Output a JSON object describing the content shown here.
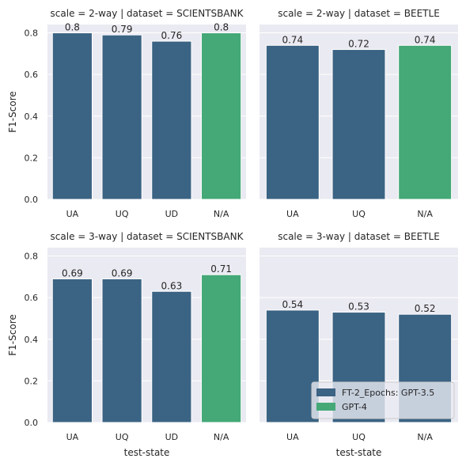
{
  "chart_data": {
    "type": "bar",
    "ylabel": "F1-Score",
    "xlabel": "test-state",
    "ylim": [
      0,
      0.84
    ],
    "yticks": [
      "0.0",
      "0.2",
      "0.4",
      "0.6",
      "0.8"
    ],
    "ytick_values": [
      0,
      0.2,
      0.4,
      0.6,
      0.8
    ],
    "grid": true,
    "legend_position": "bottom-right",
    "series": [
      {
        "name": "FT-2_Epochs: GPT-3.5",
        "color": "#3b6383"
      },
      {
        "name": "GPT-4",
        "color": "#44a877"
      }
    ],
    "panels": [
      {
        "title": "scale = 2-way | dataset = SCIENTSBANK",
        "categories": [
          "UA",
          "UQ",
          "UD",
          "N/A"
        ],
        "values": [
          0.8,
          0.79,
          0.76,
          0.8
        ],
        "labels": [
          "0.8",
          "0.79",
          "0.76",
          "0.8"
        ],
        "series_index": [
          0,
          0,
          0,
          1
        ]
      },
      {
        "title": "scale = 2-way | dataset = BEETLE",
        "categories": [
          "UA",
          "UQ",
          "N/A"
        ],
        "values": [
          0.74,
          0.72,
          0.74
        ],
        "labels": [
          "0.74",
          "0.72",
          "0.74"
        ],
        "series_index": [
          0,
          0,
          1
        ]
      },
      {
        "title": "scale = 3-way | dataset = SCIENTSBANK",
        "categories": [
          "UA",
          "UQ",
          "UD",
          "N/A"
        ],
        "values": [
          0.69,
          0.69,
          0.63,
          0.71
        ],
        "labels": [
          "0.69",
          "0.69",
          "0.63",
          "0.71"
        ],
        "series_index": [
          0,
          0,
          0,
          1
        ]
      },
      {
        "title": "scale = 3-way | dataset = BEETLE",
        "categories": [
          "UA",
          "UQ",
          "N/A"
        ],
        "values": [
          0.54,
          0.53,
          0.52
        ],
        "labels": [
          "0.54",
          "0.53",
          "0.52"
        ],
        "series_index": [
          0,
          0,
          0
        ]
      }
    ]
  }
}
